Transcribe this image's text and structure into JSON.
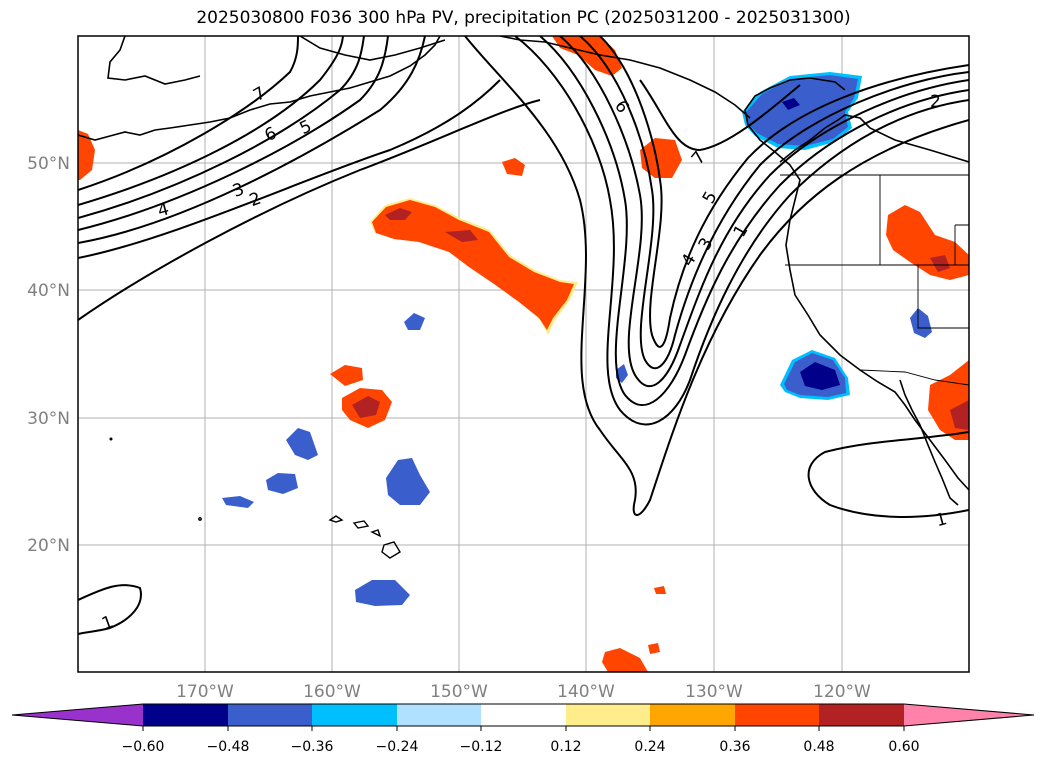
{
  "title": "2025030800 F036 300 hPa PV, precipitation PC (2025031200 - 2025031300)",
  "lat_labels": [
    "50°N",
    "40°N",
    "30°N",
    "20°N"
  ],
  "lon_labels": [
    "170°W",
    "160°W",
    "150°W",
    "140°W",
    "130°W",
    "120°W"
  ],
  "colorbar": {
    "ticks": [
      "−0.60",
      "−0.48",
      "−0.36",
      "−0.24",
      "−0.12",
      "0.12",
      "0.24",
      "0.36",
      "0.48",
      "0.60"
    ],
    "colors": [
      "#9932cc",
      "#00008b",
      "#3a5fcd",
      "#00bfff",
      "#b0e2ff",
      "#ffffff",
      "#ffec8b",
      "#ffa500",
      "#ff4500",
      "#b22222",
      "#ff82ab"
    ]
  },
  "contour_labels": [
    "1",
    "2",
    "3",
    "4",
    "5",
    "6",
    "7"
  ]
}
